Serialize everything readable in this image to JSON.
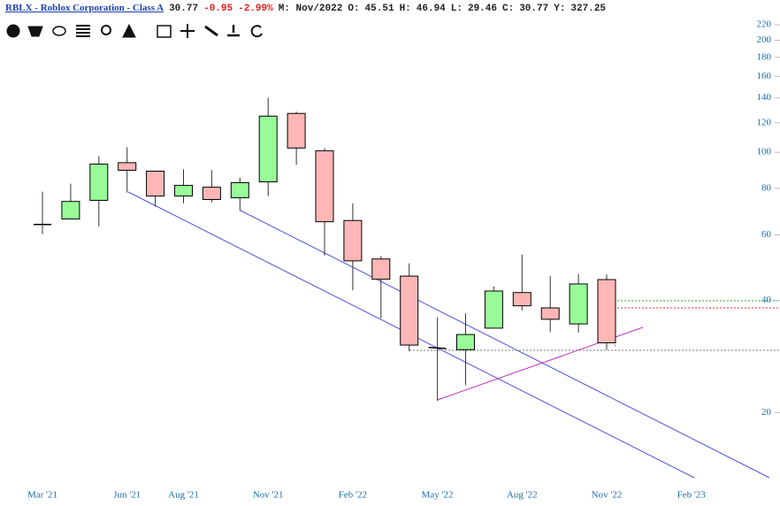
{
  "chart_data": {
    "type": "candlestick",
    "header": [
      {
        "text": "RBLX - Roblox Corporation - Class A",
        "color": "#1a3fb0",
        "link": true
      },
      {
        "text": "30.77",
        "color": "#222222"
      },
      {
        "text": "-0.95",
        "color": "#e02020"
      },
      {
        "text": "-2.99%",
        "color": "#e02020"
      },
      {
        "text": "M: Nov/2022",
        "color": "#222222"
      },
      {
        "text": "O:",
        "color": "#222222"
      },
      {
        "text": "45.51",
        "color": "#222222"
      },
      {
        "text": "H:",
        "color": "#222222"
      },
      {
        "text": "46.94",
        "color": "#222222"
      },
      {
        "text": "L:",
        "color": "#222222"
      },
      {
        "text": "29.46",
        "color": "#222222"
      },
      {
        "text": "C:",
        "color": "#222222",
        "bold": true
      },
      {
        "text": "30.77",
        "color": "#222222"
      },
      {
        "text": "Y:",
        "color": "#222222"
      },
      {
        "text": "327.25",
        "color": "#222222"
      }
    ],
    "categories": [
      "Mar '21",
      null,
      null,
      "Jun '21",
      null,
      "Aug '21",
      null,
      null,
      "Nov '21",
      null,
      null,
      "Feb '22",
      null,
      null,
      "May '22",
      null,
      null,
      "Aug '22",
      null,
      null,
      "Nov '22",
      null,
      null,
      "Feb '23"
    ],
    "open": [
      64.0,
      66.2,
      74.3,
      93.8,
      89.0,
      76.3,
      80.6,
      75.5,
      83.3,
      127.2,
      101.0,
      65.6,
      51.7,
      46.5,
      29.9,
      29.5,
      33.7,
      42.0,
      38.2,
      34.6,
      45.51,
      null,
      null,
      null
    ],
    "high": [
      78.4,
      82.4,
      97.7,
      103.2,
      89.0,
      90.0,
      89.5,
      85.6,
      140.3,
      128.6,
      102.7,
      73.0,
      52.6,
      50.3,
      36.0,
      36.9,
      43.6,
      53.1,
      46.5,
      47.1,
      46.94,
      null,
      null,
      null
    ],
    "low": [
      60.3,
      66.0,
      63.3,
      78.0,
      71.4,
      73.0,
      73.4,
      69.5,
      76.3,
      92.5,
      52.8,
      42.6,
      35.8,
      29.2,
      21.5,
      23.7,
      33.7,
      37.6,
      32.9,
      32.8,
      29.46,
      null,
      null,
      null
    ],
    "close": [
      64.0,
      73.8,
      93.0,
      89.5,
      76.3,
      81.5,
      74.7,
      82.9,
      125.1,
      102.7,
      65.1,
      51.1,
      45.6,
      30.35,
      29.7,
      32.4,
      42.4,
      38.7,
      35.6,
      44.3,
      30.77,
      null,
      null,
      null
    ],
    "up_color": "#98fb98",
    "down_color": "#ffb6b6",
    "log_scale": true,
    "ylim": [
      13,
      230
    ],
    "yticks": [
      20,
      40,
      60,
      80,
      100,
      120,
      140,
      160,
      180,
      200,
      220
    ],
    "axis_color": "#1a6ea8"
  }
}
